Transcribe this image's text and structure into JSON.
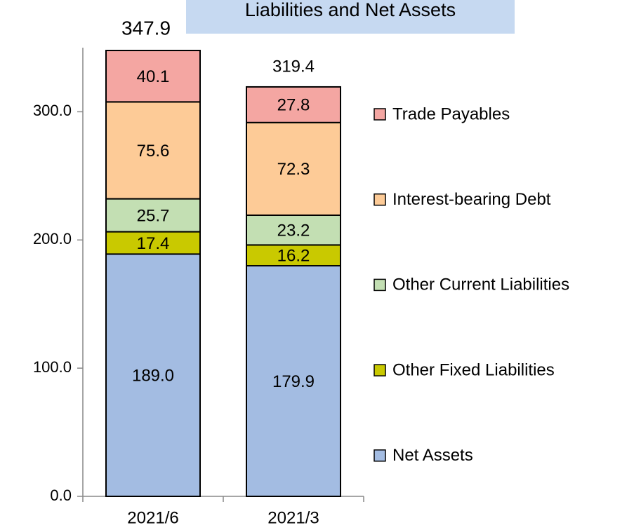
{
  "chart_data": {
    "type": "stacked_bar",
    "title": "Liabilities and Net Assets",
    "categories": [
      "2021/6",
      "2021/3"
    ],
    "series": [
      {
        "name": "Net Assets",
        "color": "#a3bce2",
        "values": [
          189.0,
          179.9
        ],
        "value_labels": [
          "189.0",
          "179.9"
        ]
      },
      {
        "name": "Other Fixed Liabilities",
        "color": "#c9c900",
        "values": [
          17.4,
          16.2
        ]
      },
      {
        "name": "Other Current Liabilities",
        "color": "#c3dfb3",
        "values": [
          25.7,
          23.2
        ]
      },
      {
        "name": "Interest-bearing Debt",
        "color": "#fdcb97",
        "values": [
          75.6,
          72.3
        ]
      },
      {
        "name": "Trade Payables",
        "color": "#f4a6a2",
        "values": [
          40.1,
          27.8
        ]
      }
    ],
    "totals": [
      347.9,
      319.4
    ],
    "ylim": [
      0,
      350
    ],
    "yticks": [
      {
        "value": 0,
        "label": "0.0"
      },
      {
        "value": 100,
        "label": "100.0"
      },
      {
        "value": 200,
        "label": "200.0"
      },
      {
        "value": 300,
        "label": "300.0"
      }
    ],
    "legend": "right"
  }
}
